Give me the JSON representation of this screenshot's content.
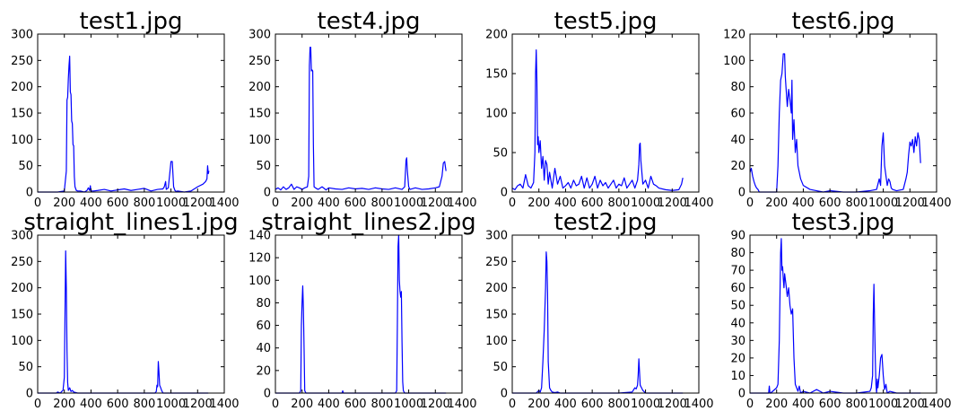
{
  "figure": {
    "line_color": "#0000ff",
    "frame_color": "#000000",
    "background": "#ffffff"
  },
  "chart_data": [
    {
      "type": "line",
      "title": "test1.jpg",
      "xlim": [
        0,
        1400
      ],
      "ylim": [
        0,
        300
      ],
      "xticks": [
        0,
        200,
        400,
        600,
        800,
        1000,
        1200,
        1400
      ],
      "yticks": [
        0,
        50,
        100,
        150,
        200,
        250,
        300
      ],
      "grid": false,
      "series": [
        {
          "x": [
            0,
            150,
            200,
            215,
            220,
            225,
            230,
            235,
            240,
            245,
            250,
            255,
            260,
            265,
            270,
            275,
            280,
            290,
            300,
            320,
            350,
            370,
            380,
            390,
            395,
            400,
            420,
            450,
            500,
            550,
            600,
            650,
            700,
            750,
            800,
            850,
            900,
            940,
            950,
            960,
            965,
            980,
            995,
            1000,
            1010,
            1020,
            1030,
            1040,
            1050,
            1100,
            1150,
            1200,
            1240,
            1260,
            1270,
            1275,
            1280,
            1285
          ],
          "y": [
            0,
            0,
            2,
            40,
            175,
            180,
            215,
            240,
            258,
            190,
            185,
            135,
            130,
            90,
            88,
            30,
            10,
            3,
            2,
            2,
            0,
            3,
            8,
            3,
            12,
            2,
            2,
            3,
            5,
            2,
            4,
            6,
            3,
            5,
            7,
            2,
            5,
            6,
            10,
            20,
            5,
            8,
            45,
            58,
            58,
            10,
            3,
            1,
            2,
            0,
            2,
            10,
            15,
            20,
            25,
            50,
            35,
            40
          ]
        }
      ]
    },
    {
      "type": "line",
      "title": "test4.jpg",
      "xlim": [
        0,
        1400
      ],
      "ylim": [
        0,
        300
      ],
      "xticks": [
        0,
        200,
        400,
        600,
        800,
        1000,
        1200,
        1400
      ],
      "yticks": [
        0,
        50,
        100,
        150,
        200,
        250,
        300
      ],
      "grid": false,
      "series": [
        {
          "x": [
            0,
            20,
            40,
            60,
            80,
            100,
            120,
            140,
            160,
            180,
            200,
            220,
            240,
            250,
            255,
            260,
            265,
            270,
            275,
            280,
            285,
            290,
            300,
            320,
            350,
            380,
            400,
            450,
            500,
            550,
            600,
            650,
            700,
            750,
            800,
            850,
            900,
            950,
            970,
            980,
            985,
            990,
            1000,
            1010,
            1050,
            1100,
            1150,
            1200,
            1230,
            1250,
            1260,
            1270,
            1280
          ],
          "y": [
            5,
            8,
            4,
            10,
            5,
            8,
            15,
            5,
            10,
            8,
            5,
            8,
            10,
            30,
            240,
            275,
            275,
            230,
            232,
            230,
            90,
            10,
            8,
            5,
            10,
            4,
            8,
            6,
            5,
            8,
            6,
            7,
            5,
            8,
            6,
            5,
            8,
            5,
            10,
            60,
            65,
            40,
            10,
            5,
            8,
            5,
            6,
            8,
            10,
            30,
            55,
            58,
            40
          ]
        }
      ]
    },
    {
      "type": "line",
      "title": "test5.jpg",
      "xlim": [
        0,
        1400
      ],
      "ylim": [
        0,
        200
      ],
      "xticks": [
        0,
        200,
        400,
        600,
        800,
        1000,
        1200,
        1400
      ],
      "yticks": [
        0,
        50,
        100,
        150,
        200
      ],
      "grid": false,
      "series": [
        {
          "x": [
            0,
            20,
            40,
            60,
            80,
            100,
            120,
            140,
            160,
            170,
            175,
            180,
            185,
            190,
            195,
            200,
            210,
            220,
            230,
            240,
            250,
            260,
            270,
            280,
            300,
            320,
            340,
            360,
            380,
            400,
            420,
            440,
            460,
            480,
            500,
            520,
            540,
            560,
            580,
            600,
            620,
            640,
            660,
            680,
            700,
            720,
            740,
            760,
            780,
            800,
            820,
            840,
            860,
            880,
            900,
            920,
            940,
            950,
            955,
            960,
            965,
            970,
            980,
            1000,
            1020,
            1040,
            1060,
            1080,
            1100,
            1150,
            1200,
            1250,
            1270,
            1280
          ],
          "y": [
            5,
            3,
            8,
            10,
            5,
            22,
            8,
            5,
            12,
            50,
            150,
            180,
            140,
            60,
            70,
            50,
            65,
            30,
            45,
            15,
            40,
            35,
            10,
            25,
            5,
            30,
            10,
            20,
            5,
            8,
            12,
            5,
            15,
            8,
            10,
            20,
            5,
            18,
            5,
            10,
            20,
            5,
            15,
            8,
            12,
            5,
            10,
            15,
            5,
            10,
            8,
            18,
            5,
            10,
            15,
            5,
            15,
            35,
            60,
            62,
            40,
            30,
            10,
            15,
            5,
            20,
            10,
            8,
            5,
            3,
            2,
            3,
            10,
            18
          ]
        }
      ]
    },
    {
      "type": "line",
      "title": "test6.jpg",
      "xlim": [
        0,
        1400
      ],
      "ylim": [
        0,
        120
      ],
      "xticks": [
        0,
        200,
        400,
        600,
        800,
        1000,
        1200,
        1400
      ],
      "yticks": [
        0,
        20,
        40,
        60,
        80,
        100,
        120
      ],
      "grid": false,
      "series": [
        {
          "x": [
            0,
            10,
            20,
            30,
            40,
            50,
            60,
            70,
            100,
            150,
            200,
            210,
            220,
            230,
            240,
            250,
            260,
            265,
            270,
            280,
            290,
            300,
            310,
            315,
            320,
            330,
            340,
            350,
            360,
            380,
            400,
            450,
            500,
            550,
            600,
            700,
            800,
            900,
            950,
            970,
            980,
            990,
            1000,
            1010,
            1030,
            1040,
            1050,
            1060,
            1070,
            1100,
            1150,
            1170,
            1180,
            1190,
            1200,
            1210,
            1220,
            1230,
            1240,
            1250,
            1260,
            1270,
            1280
          ],
          "y": [
            15,
            18,
            12,
            8,
            5,
            3,
            2,
            0,
            0,
            0,
            0,
            20,
            60,
            85,
            90,
            105,
            105,
            88,
            80,
            65,
            78,
            70,
            60,
            85,
            40,
            55,
            30,
            40,
            20,
            10,
            5,
            2,
            1,
            0,
            1,
            0,
            0,
            1,
            2,
            10,
            5,
            35,
            45,
            20,
            5,
            10,
            8,
            3,
            2,
            1,
            2,
            10,
            15,
            28,
            38,
            35,
            40,
            30,
            42,
            35,
            45,
            40,
            22
          ]
        }
      ]
    },
    {
      "type": "line",
      "title": "straight_lines1.jpg",
      "xlim": [
        0,
        1400
      ],
      "ylim": [
        0,
        300
      ],
      "xticks": [
        0,
        200,
        400,
        600,
        800,
        1000,
        1200,
        1400
      ],
      "yticks": [
        0,
        50,
        100,
        150,
        200,
        250,
        300
      ],
      "grid": false,
      "series": [
        {
          "x": [
            0,
            140,
            150,
            160,
            170,
            180,
            190,
            200,
            205,
            210,
            215,
            220,
            225,
            230,
            240,
            250,
            260,
            270,
            300,
            400,
            600,
            800,
            880,
            890,
            895,
            900,
            905,
            910,
            915,
            920,
            930,
            940,
            1000,
            1200,
            1280
          ],
          "y": [
            0,
            0,
            2,
            1,
            0,
            3,
            5,
            30,
            150,
            270,
            200,
            80,
            20,
            5,
            10,
            3,
            5,
            2,
            0,
            0,
            0,
            0,
            0,
            3,
            15,
            12,
            60,
            40,
            15,
            12,
            5,
            0,
            0,
            0,
            0
          ]
        }
      ]
    },
    {
      "type": "line",
      "title": "straight_lines2.jpg",
      "xlim": [
        0,
        1400
      ],
      "ylim": [
        0,
        140
      ],
      "xticks": [
        0,
        200,
        400,
        600,
        800,
        1000,
        1200,
        1400
      ],
      "yticks": [
        0,
        20,
        40,
        60,
        80,
        100,
        120,
        140
      ],
      "grid": false,
      "series": [
        {
          "x": [
            0,
            180,
            190,
            195,
            200,
            205,
            210,
            215,
            220,
            230,
            400,
            450,
            500,
            505,
            510,
            700,
            900,
            910,
            915,
            920,
            925,
            930,
            935,
            940,
            945,
            950,
            955,
            960,
            970,
            1000,
            1280
          ],
          "y": [
            0,
            0,
            2,
            60,
            80,
            95,
            75,
            40,
            2,
            0,
            0,
            0,
            0,
            2,
            0,
            0,
            0,
            2,
            60,
            130,
            140,
            100,
            90,
            85,
            90,
            45,
            10,
            2,
            0,
            0,
            0
          ]
        }
      ]
    },
    {
      "type": "line",
      "title": "test2.jpg",
      "xlim": [
        0,
        1400
      ],
      "ylim": [
        0,
        300
      ],
      "xticks": [
        0,
        200,
        400,
        600,
        800,
        1000,
        1200,
        1400
      ],
      "yticks": [
        0,
        50,
        100,
        150,
        200,
        250,
        300
      ],
      "grid": false,
      "series": [
        {
          "x": [
            0,
            100,
            180,
            200,
            210,
            220,
            230,
            240,
            250,
            255,
            260,
            265,
            270,
            280,
            290,
            300,
            320,
            340,
            360,
            400,
            500,
            600,
            700,
            800,
            900,
            920,
            930,
            940,
            945,
            950,
            955,
            960,
            970,
            980,
            1000,
            1100,
            1280
          ],
          "y": [
            0,
            0,
            0,
            5,
            2,
            10,
            60,
            120,
            200,
            268,
            250,
            190,
            60,
            10,
            5,
            2,
            1,
            2,
            0,
            0,
            0,
            0,
            0,
            0,
            2,
            10,
            8,
            15,
            35,
            65,
            40,
            15,
            10,
            5,
            0,
            0,
            0
          ]
        }
      ]
    },
    {
      "type": "line",
      "title": "test3.jpg",
      "xlim": [
        0,
        1400
      ],
      "ylim": [
        0,
        90
      ],
      "xticks": [
        0,
        200,
        400,
        600,
        800,
        1000,
        1200,
        1400
      ],
      "yticks": [
        0,
        10,
        20,
        30,
        40,
        50,
        60,
        70,
        80,
        90
      ],
      "grid": false,
      "series": [
        {
          "x": [
            0,
            100,
            140,
            145,
            150,
            155,
            200,
            210,
            220,
            230,
            235,
            240,
            245,
            250,
            255,
            260,
            270,
            280,
            290,
            300,
            310,
            320,
            330,
            340,
            350,
            360,
            370,
            380,
            400,
            450,
            500,
            550,
            600,
            700,
            800,
            900,
            910,
            920,
            925,
            930,
            935,
            940,
            945,
            950,
            955,
            960,
            970,
            980,
            990,
            1000,
            1010,
            1020,
            1030,
            1050,
            1100,
            1280
          ],
          "y": [
            0,
            0,
            0,
            4,
            0,
            0,
            3,
            5,
            30,
            80,
            88,
            70,
            72,
            65,
            60,
            68,
            62,
            55,
            60,
            50,
            45,
            48,
            20,
            5,
            3,
            1,
            4,
            0,
            1,
            0,
            2,
            0,
            1,
            0,
            0,
            1,
            3,
            10,
            45,
            62,
            40,
            20,
            5,
            0,
            8,
            3,
            10,
            20,
            22,
            10,
            2,
            5,
            0,
            1,
            0,
            0
          ]
        }
      ]
    }
  ]
}
